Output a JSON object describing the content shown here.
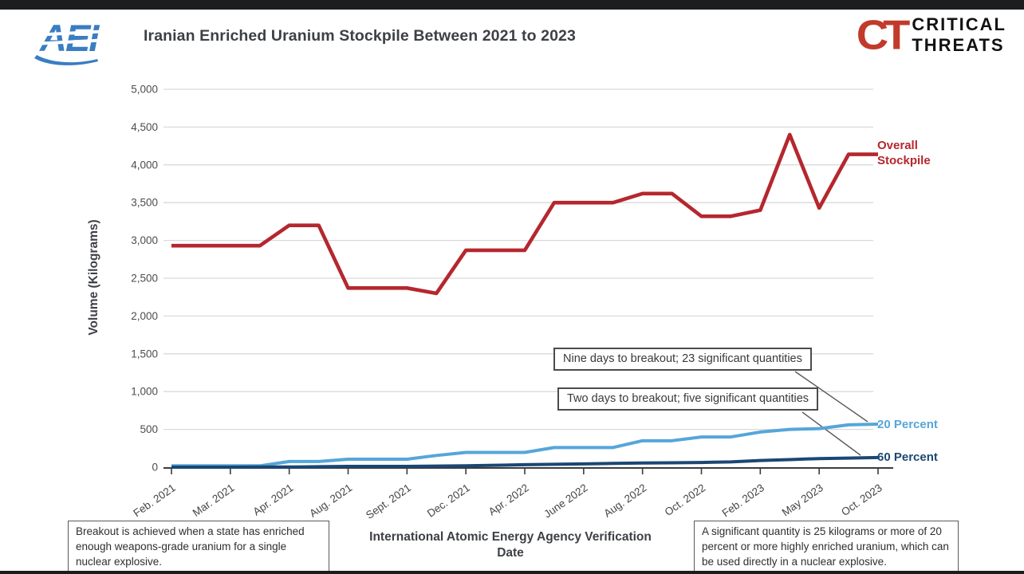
{
  "header": {
    "aei_logo_text": "AEI",
    "title": "Iranian Enriched Uranium Stockpile Between 2021 to 2023",
    "ct_monogram": "CT",
    "ct_line1": "CRITICAL",
    "ct_line2": "THREATS"
  },
  "chart_data": {
    "type": "line",
    "title": "Iranian Enriched Uranium Stockpile Between 2021 to 2023",
    "xlabel": "International Atomic Energy Agency Verification Date",
    "ylabel": "Volume (Kilograms)",
    "ylim": [
      0,
      5000
    ],
    "ytick_step": 500,
    "ytick_labels": [
      "0",
      "500",
      "1,000",
      "1,500",
      "2,000",
      "2,500",
      "3,000",
      "3,500",
      "4,000",
      "4,500",
      "5,000"
    ],
    "x_tick_labels": [
      "Feb. 2021",
      "Mar. 2021",
      "Apr. 2021",
      "Aug. 2021",
      "Sept. 2021",
      "Dec. 2021",
      "Apr. 2022",
      "June 2022",
      "Aug. 2022",
      "Oct. 2022",
      "Feb. 2023",
      "May 2023",
      "Oct. 2023"
    ],
    "x_points_per_label": 2,
    "grid": "horizontal",
    "legend_position": "line-end-labels",
    "series": [
      {
        "name": "Overall Stockpile",
        "color": "#b5272e",
        "values": [
          2930,
          2930,
          2930,
          2930,
          3200,
          3200,
          2370,
          2370,
          2370,
          2300,
          2870,
          2870,
          2870,
          3500,
          3500,
          3500,
          3620,
          3620,
          3320,
          3320,
          3400,
          4400,
          3430,
          4140,
          4140
        ]
      },
      {
        "name": "20 Percent",
        "color": "#55a6d9",
        "values": [
          18,
          18,
          18,
          18,
          75,
          75,
          105,
          105,
          105,
          155,
          195,
          195,
          195,
          260,
          260,
          260,
          350,
          350,
          400,
          400,
          465,
          500,
          510,
          560,
          570
        ]
      },
      {
        "name": "60 Percent",
        "color": "#1b4773",
        "values": [
          0,
          0,
          0,
          2,
          3,
          6,
          10,
          10,
          10,
          15,
          18,
          25,
          33,
          38,
          43,
          50,
          55,
          58,
          62,
          70,
          88,
          100,
          114,
          120,
          128
        ]
      }
    ],
    "annotations": [
      {
        "text": "Nine days to breakout; 23 significant quantities",
        "points_to": "20 Percent"
      },
      {
        "text": "Two days to breakout; five significant quantities",
        "points_to": "60 Percent"
      }
    ]
  },
  "footnotes": {
    "left": "Breakout is achieved when a state has enriched enough weapons-grade uranium for a single nuclear explosive.",
    "right": "A significant quantity is 25 kilograms or more of 20 percent or more highly enriched uranium, which can be used directly in a nuclear explosive."
  }
}
